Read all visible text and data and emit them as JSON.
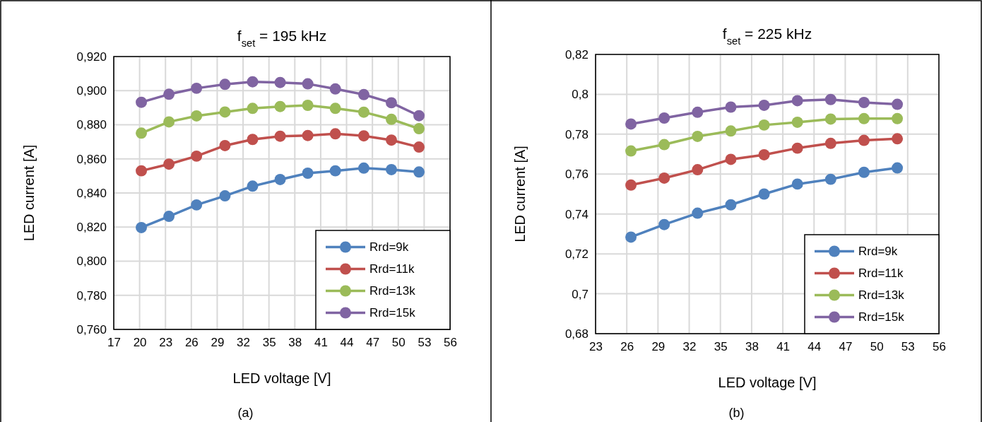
{
  "chart_data": [
    {
      "type": "line",
      "title": "f$_{set}$ = 195 kHz",
      "xlabel": "LED voltage [V]",
      "ylabel": "LED current [A]",
      "annotations": [
        "(a)"
      ],
      "xlim": [
        17,
        56
      ],
      "xticks": [
        17,
        20,
        23,
        26,
        29,
        32,
        35,
        38,
        41,
        44,
        47,
        50,
        53,
        56
      ],
      "ylim": [
        0.76,
        0.92
      ],
      "yticks": [
        {
          "value": 0.76,
          "label": "0,760"
        },
        {
          "value": 0.78,
          "label": "0,780"
        },
        {
          "value": 0.8,
          "label": "0,800"
        },
        {
          "value": 0.82,
          "label": "0,820"
        },
        {
          "value": 0.84,
          "label": "0,840"
        },
        {
          "value": 0.86,
          "label": "0,860"
        },
        {
          "value": 0.88,
          "label": "0,880"
        },
        {
          "value": 0.9,
          "label": "0,900"
        },
        {
          "value": 0.92,
          "label": "0,920"
        }
      ],
      "grid": true,
      "legend": "bottom right",
      "marker": "circle",
      "line_style": "solid",
      "x": [
        20.2,
        23.4,
        26.6,
        29.9,
        33.1,
        36.3,
        39.5,
        42.7,
        46.0,
        49.2,
        52.4
      ],
      "series": [
        {
          "name": "Rrd=9k",
          "color": "#4f81bd",
          "values": [
            0.8197,
            0.8263,
            0.833,
            0.8383,
            0.844,
            0.8479,
            0.8516,
            0.853,
            0.8546,
            0.8537,
            0.8523
          ]
        },
        {
          "name": "Rrd=11k",
          "color": "#c0504d",
          "values": [
            0.853,
            0.8569,
            0.8616,
            0.8678,
            0.8714,
            0.8733,
            0.8737,
            0.8747,
            0.8735,
            0.871,
            0.8669
          ]
        },
        {
          "name": "Rrd=13k",
          "color": "#9bbb59",
          "values": [
            0.8751,
            0.8817,
            0.8852,
            0.8875,
            0.8896,
            0.8907,
            0.8914,
            0.8896,
            0.8874,
            0.8832,
            0.8777
          ]
        },
        {
          "name": "Rrd=15k",
          "color": "#8064a2",
          "values": [
            0.8932,
            0.8979,
            0.9014,
            0.9037,
            0.9052,
            0.9048,
            0.904,
            0.901,
            0.8977,
            0.8929,
            0.8853
          ]
        }
      ]
    },
    {
      "type": "line",
      "title": "f$_{set}$ = 225 kHz",
      "xlabel": "LED voltage [V]",
      "ylabel": "LED current [A]",
      "annotations": [
        "(b)"
      ],
      "xlim": [
        23,
        56
      ],
      "xticks": [
        23,
        26,
        29,
        32,
        35,
        38,
        41,
        44,
        47,
        50,
        53,
        56
      ],
      "ylim": [
        0.68,
        0.82
      ],
      "yticks": [
        {
          "value": 0.68,
          "label": "0,68"
        },
        {
          "value": 0.7,
          "label": "0,7"
        },
        {
          "value": 0.72,
          "label": "0,72"
        },
        {
          "value": 0.74,
          "label": "0,74"
        },
        {
          "value": 0.76,
          "label": "0,76"
        },
        {
          "value": 0.78,
          "label": "0,78"
        },
        {
          "value": 0.8,
          "label": "0,8"
        },
        {
          "value": 0.82,
          "label": "0,82"
        }
      ],
      "grid": true,
      "legend": "bottom right",
      "marker": "circle",
      "line_style": "solid",
      "x": [
        26.4,
        29.6,
        32.8,
        36.0,
        39.2,
        42.4,
        45.6,
        48.8,
        52.0
      ],
      "series": [
        {
          "name": "Rrd=9k",
          "color": "#4f81bd",
          "values": [
            0.7284,
            0.7347,
            0.7404,
            0.7446,
            0.75,
            0.755,
            0.7574,
            0.7609,
            0.7631
          ]
        },
        {
          "name": "Rrd=11k",
          "color": "#c0504d",
          "values": [
            0.7545,
            0.758,
            0.7622,
            0.7674,
            0.7697,
            0.773,
            0.7754,
            0.7769,
            0.7777
          ]
        },
        {
          "name": "Rrd=13k",
          "color": "#9bbb59",
          "values": [
            0.7716,
            0.7748,
            0.7789,
            0.7816,
            0.7846,
            0.786,
            0.7876,
            0.7878,
            0.7878
          ]
        },
        {
          "name": "Rrd=15k",
          "color": "#8064a2",
          "values": [
            0.7851,
            0.7881,
            0.791,
            0.7936,
            0.7945,
            0.7968,
            0.7974,
            0.7959,
            0.795
          ]
        }
      ]
    }
  ]
}
